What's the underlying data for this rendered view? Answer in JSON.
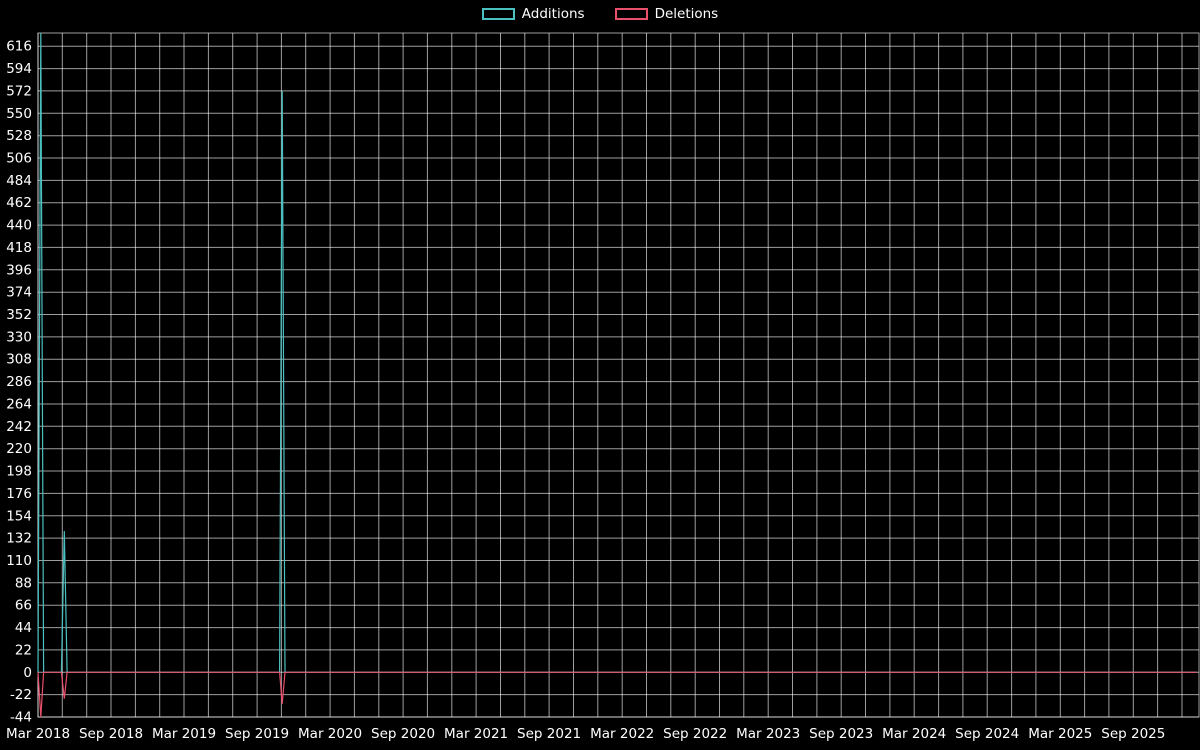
{
  "chart_data": {
    "type": "line",
    "title": "",
    "background_color": "#000000",
    "grid_color": "rgba(255,255,255,0.62)",
    "text_color": "#ffffff",
    "legend_position": "top",
    "grid": true,
    "y_axis": {
      "min": -44,
      "max": 629,
      "tick_step": 22,
      "ticks": [
        -44,
        -22,
        0,
        22,
        44,
        66,
        88,
        110,
        132,
        154,
        176,
        198,
        220,
        242,
        264,
        286,
        308,
        330,
        352,
        374,
        396,
        418,
        440,
        462,
        484,
        506,
        528,
        550,
        572,
        594,
        616
      ]
    },
    "x_axis": {
      "start": "2018-03-01",
      "months_visible": 95.4,
      "label_every_months": 6,
      "grid_every_months": 2,
      "tick_labels": [
        "Mar 2018",
        "Sep 2018",
        "Mar 2019",
        "Sep 2019",
        "Mar 2020",
        "Sep 2020",
        "Mar 2021",
        "Sep 2021",
        "Mar 2022",
        "Sep 2022",
        "Mar 2023",
        "Sep 2023",
        "Mar 2024",
        "Sep 2024",
        "Mar 2025",
        "Sep 2025"
      ]
    },
    "series": [
      {
        "name": "Additions",
        "color": "#4bc0c0",
        "points": [
          [
            "2018-03-01",
            0
          ],
          [
            "2018-03-08",
            629
          ],
          [
            "2018-03-15",
            0
          ],
          [
            "2018-04-29",
            0
          ],
          [
            "2018-05-06",
            139
          ],
          [
            "2018-05-13",
            0
          ],
          [
            "2019-10-27",
            0
          ],
          [
            "2019-11-03",
            572
          ],
          [
            "2019-11-10",
            0
          ],
          [
            "2026-02-08",
            0
          ]
        ]
      },
      {
        "name": "Deletions",
        "color": "#ea4f6b",
        "points": [
          [
            "2018-03-01",
            0
          ],
          [
            "2018-03-08",
            -44
          ],
          [
            "2018-03-15",
            0
          ],
          [
            "2018-04-29",
            0
          ],
          [
            "2018-05-06",
            -26
          ],
          [
            "2018-05-13",
            0
          ],
          [
            "2019-10-27",
            0
          ],
          [
            "2019-11-03",
            -31
          ],
          [
            "2019-11-10",
            0
          ],
          [
            "2026-02-08",
            0
          ]
        ]
      }
    ]
  }
}
